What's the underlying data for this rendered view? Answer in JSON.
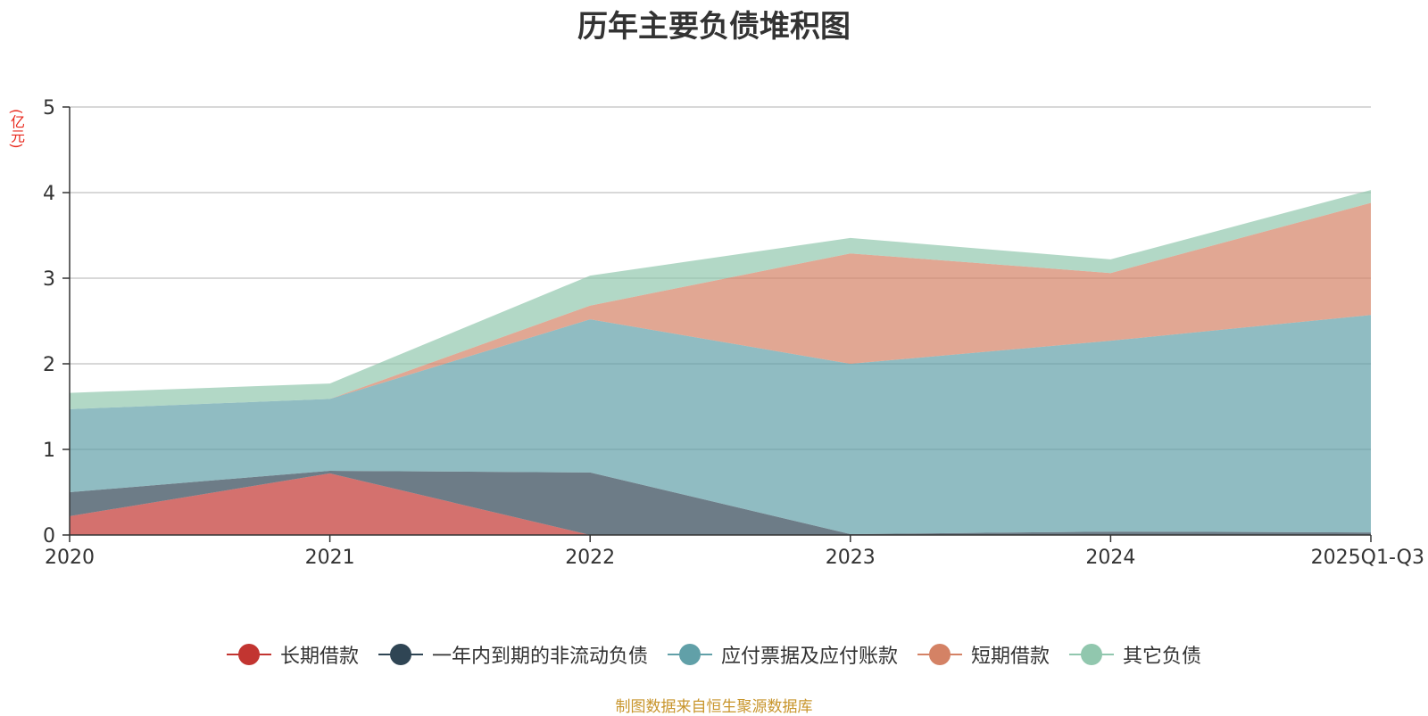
{
  "chart_data": {
    "type": "area",
    "stacked": true,
    "title": "历年主要负债堆积图",
    "unit": "(亿元)",
    "categories": [
      "2020",
      "2021",
      "2022",
      "2023",
      "2024",
      "2025Q1-Q3"
    ],
    "ylim": [
      0,
      5
    ],
    "yticks": [
      "0",
      "1",
      "2",
      "3",
      "4",
      "5"
    ],
    "grid": true,
    "legend_position": "bottom",
    "series": [
      {
        "name": "长期借款",
        "color": "#c23531",
        "values": [
          0.22,
          0.72,
          0.0,
          0.0,
          0.0,
          0.0
        ]
      },
      {
        "name": "一年内到期的非流动负债",
        "color": "#2f4554",
        "values": [
          0.28,
          0.03,
          0.73,
          0.01,
          0.04,
          0.03
        ]
      },
      {
        "name": "应付票据及应付账款",
        "color": "#61a0a8",
        "values": [
          0.97,
          0.84,
          1.79,
          1.99,
          2.23,
          2.54
        ]
      },
      {
        "name": "短期借款",
        "color": "#d48265",
        "values": [
          0.0,
          0.0,
          0.16,
          1.29,
          0.79,
          1.31
        ]
      },
      {
        "name": "其它负债",
        "color": "#91c7ae",
        "values": [
          0.19,
          0.18,
          0.35,
          0.18,
          0.16,
          0.15
        ]
      }
    ]
  },
  "footer": {
    "source": "制图数据来自恒生聚源数据库"
  }
}
